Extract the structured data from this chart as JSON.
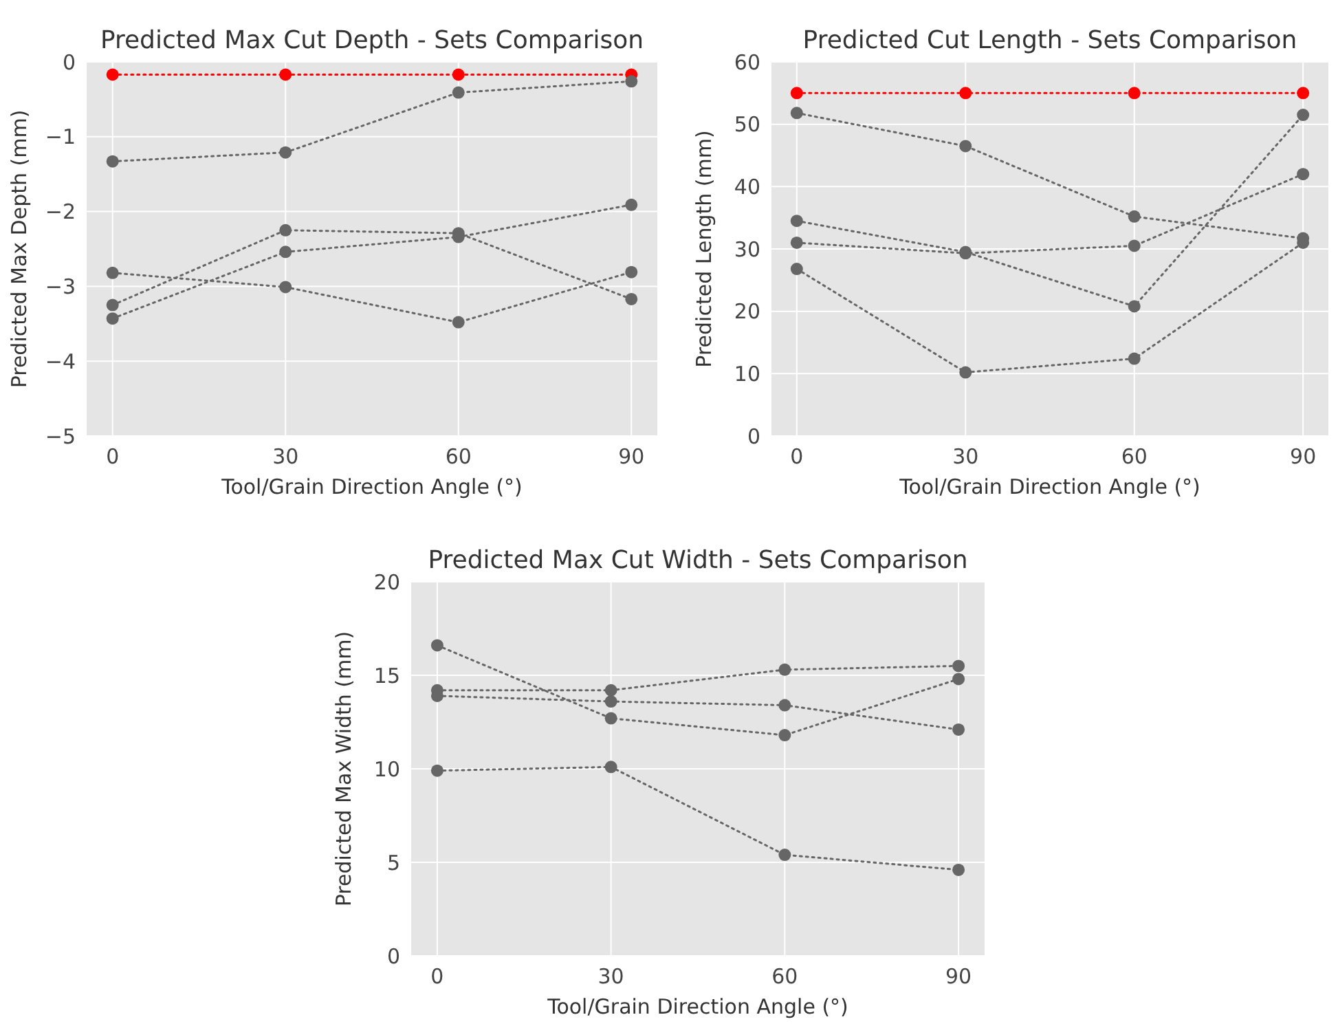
{
  "chart_data": [
    {
      "type": "line",
      "title": "Predicted Max Cut Depth - Sets Comparison",
      "xlabel": "Tool/Grain Direction Angle (°)",
      "ylabel": "Predicted Max Depth (mm)",
      "x": [
        0,
        30,
        60,
        90
      ],
      "xlim": [
        -4.5,
        94.5
      ],
      "xticks": [
        0,
        30,
        60,
        90
      ],
      "ylim": [
        -5,
        0
      ],
      "yticks": [
        -5,
        -4,
        -3,
        -2,
        -1,
        0
      ],
      "grid": true,
      "marker": "circle",
      "line_style": "dotted",
      "series": [
        {
          "color": "#ff0000",
          "values": [
            -0.17,
            -0.17,
            -0.17,
            -0.17
          ]
        },
        {
          "color": "#666666",
          "values": [
            -1.33,
            -1.21,
            -0.41,
            -0.26
          ]
        },
        {
          "color": "#666666",
          "values": [
            -3.25,
            -2.25,
            -2.29,
            -3.17
          ]
        },
        {
          "color": "#666666",
          "values": [
            -3.43,
            -2.54,
            -2.34,
            -1.91
          ]
        },
        {
          "color": "#666666",
          "values": [
            -2.82,
            -3.01,
            -3.48,
            -2.81
          ]
        }
      ]
    },
    {
      "type": "line",
      "title": "Predicted Cut Length - Sets Comparison",
      "xlabel": "Tool/Grain Direction Angle (°)",
      "ylabel": "Predicted Length (mm)",
      "x": [
        0,
        30,
        60,
        90
      ],
      "xlim": [
        -4.5,
        94.5
      ],
      "xticks": [
        0,
        30,
        60,
        90
      ],
      "ylim": [
        0,
        60
      ],
      "yticks": [
        0,
        10,
        20,
        30,
        40,
        50,
        60
      ],
      "grid": true,
      "marker": "circle",
      "line_style": "dotted",
      "series": [
        {
          "color": "#ff0000",
          "values": [
            55,
            55,
            55,
            55
          ]
        },
        {
          "color": "#666666",
          "values": [
            51.8,
            46.5,
            35.2,
            31.7
          ]
        },
        {
          "color": "#666666",
          "values": [
            34.5,
            29.5,
            20.8,
            51.5
          ]
        },
        {
          "color": "#666666",
          "values": [
            31,
            29.3,
            30.5,
            42
          ]
        },
        {
          "color": "#666666",
          "values": [
            26.8,
            10.2,
            12.4,
            31
          ]
        }
      ]
    },
    {
      "type": "line",
      "title": "Predicted Max Cut Width - Sets Comparison",
      "xlabel": "Tool/Grain Direction Angle (°)",
      "ylabel": "Predicted Max Width (mm)",
      "x": [
        0,
        30,
        60,
        90
      ],
      "xlim": [
        -4.5,
        94.5
      ],
      "xticks": [
        0,
        30,
        60,
        90
      ],
      "ylim": [
        0,
        20
      ],
      "yticks": [
        0,
        5,
        10,
        15,
        20
      ],
      "grid": true,
      "marker": "circle",
      "line_style": "dotted",
      "series": [
        {
          "color": "#666666",
          "values": [
            16.6,
            12.7,
            11.8,
            14.8
          ]
        },
        {
          "color": "#666666",
          "values": [
            14.2,
            14.2,
            15.3,
            15.5
          ]
        },
        {
          "color": "#666666",
          "values": [
            13.9,
            13.6,
            13.4,
            12.1
          ]
        },
        {
          "color": "#666666",
          "values": [
            9.9,
            10.1,
            5.4,
            4.6
          ]
        }
      ]
    }
  ]
}
